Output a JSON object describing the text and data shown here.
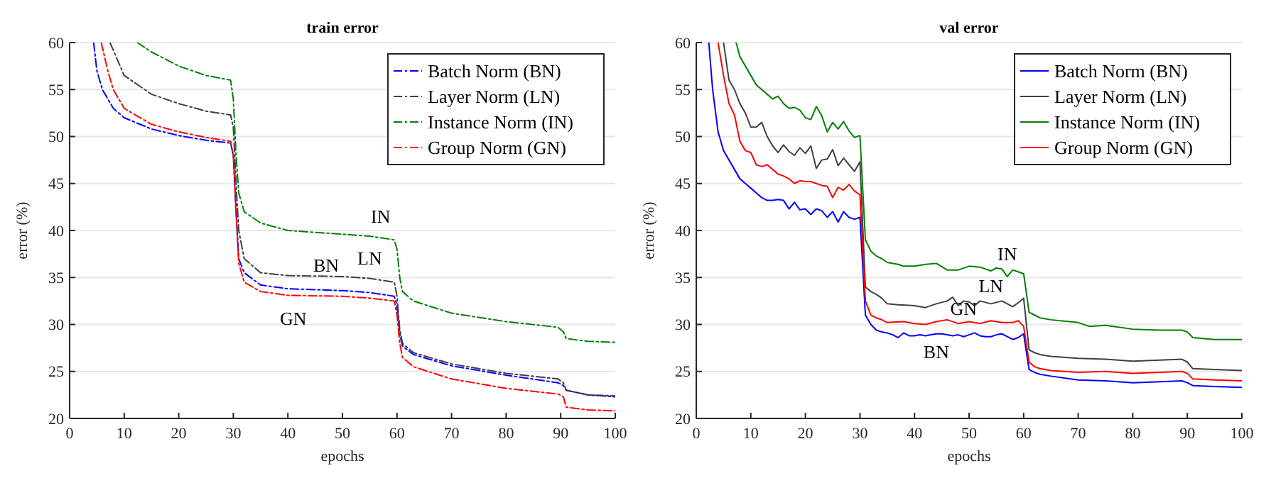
{
  "chart_data": [
    {
      "type": "line",
      "title": "train error",
      "xlabel": "epochs",
      "ylabel": "error (%)",
      "xlim": [
        0,
        100
      ],
      "xticks": [
        0,
        10,
        20,
        30,
        40,
        50,
        60,
        70,
        80,
        90,
        100
      ],
      "ylim": [
        20,
        60
      ],
      "yticks": [
        20,
        25,
        30,
        35,
        40,
        45,
        50,
        55,
        60
      ],
      "grid": "y",
      "legend": "top right",
      "line_style": "dashed",
      "marker": "none",
      "series": [
        {
          "name": "Batch Norm (BN)",
          "color": "#0000ff",
          "x": [
            4.4,
            5,
            6,
            8,
            10,
            15,
            20,
            25,
            29.5,
            30,
            30.5,
            31,
            32,
            35,
            40,
            50,
            55,
            59.5,
            60,
            60.5,
            61,
            63,
            70,
            80,
            89.5,
            90.5,
            91,
            95,
            100
          ],
          "values": [
            60,
            57,
            55,
            53,
            52,
            50.8,
            50.1,
            49.6,
            49.3,
            48,
            42,
            37,
            35.5,
            34.2,
            33.8,
            33.6,
            33.4,
            33,
            32,
            29,
            27.7,
            26.8,
            25.6,
            24.6,
            23.8,
            23.5,
            23,
            22.5,
            22.3
          ]
        },
        {
          "name": "Layer Norm (LN)",
          "color": "#404040",
          "x": [
            7.4,
            10,
            15,
            20,
            25,
            29.5,
            30,
            30.5,
            31,
            32,
            35,
            40,
            50,
            55,
            59.5,
            60,
            60.5,
            61,
            63,
            70,
            80,
            89.5,
            90.5,
            91,
            95,
            100
          ],
          "values": [
            60,
            56.5,
            54.5,
            53.5,
            52.7,
            52.3,
            51,
            45,
            40,
            37,
            35.5,
            35.2,
            35.1,
            34.9,
            34.5,
            33,
            29.5,
            28,
            27,
            25.8,
            24.8,
            24.2,
            23.8,
            23,
            22.5,
            22.4
          ]
        },
        {
          "name": "Instance Norm (IN)",
          "color": "#008000",
          "x": [
            12.4,
            15,
            20,
            25,
            29.5,
            30,
            30.5,
            31,
            32,
            35,
            40,
            50,
            55,
            59.5,
            60,
            60.5,
            61,
            63,
            70,
            80,
            89.5,
            90.5,
            91,
            95,
            100
          ],
          "values": [
            60,
            59,
            57.5,
            56.5,
            56,
            54,
            48,
            44,
            42,
            40.8,
            40,
            39.6,
            39.4,
            39,
            38,
            35,
            33.5,
            32.5,
            31.2,
            30.3,
            29.7,
            29.2,
            28.5,
            28.2,
            28.1
          ]
        },
        {
          "name": "Group Norm (GN)",
          "color": "#ff0000",
          "x": [
            5.8,
            7,
            8,
            10,
            15,
            20,
            25,
            29.5,
            30,
            30.5,
            31,
            32,
            35,
            40,
            50,
            55,
            59.5,
            60,
            60.5,
            61,
            63,
            70,
            80,
            89.5,
            90.5,
            91,
            95,
            100
          ],
          "values": [
            60,
            57,
            55,
            53,
            51.3,
            50.5,
            49.9,
            49.5,
            48,
            42,
            36.5,
            34.5,
            33.5,
            33.1,
            33,
            32.8,
            32.5,
            31,
            28,
            26.5,
            25.5,
            24.2,
            23.2,
            22.6,
            22.3,
            21.2,
            20.9,
            20.8
          ]
        }
      ],
      "annotations": [
        "IN",
        "LN",
        "BN",
        "GN"
      ]
    },
    {
      "type": "line",
      "title": "val error",
      "xlabel": "epochs",
      "ylabel": "error (%)",
      "xlim": [
        0,
        100
      ],
      "xticks": [
        0,
        10,
        20,
        30,
        40,
        50,
        60,
        70,
        80,
        90,
        100
      ],
      "ylim": [
        20,
        60
      ],
      "yticks": [
        20,
        25,
        30,
        35,
        40,
        45,
        50,
        55,
        60
      ],
      "grid": "y",
      "legend": "top right",
      "line_style": "solid",
      "marker": "none",
      "series": [
        {
          "name": "Batch Norm (BN)",
          "color": "#0000ff",
          "x": [
            2.3,
            3,
            4,
            5,
            6,
            7,
            8,
            9,
            10,
            11,
            12,
            13,
            14,
            15,
            16,
            17,
            18,
            19,
            20,
            21,
            22,
            23,
            24,
            25,
            26,
            27,
            28,
            29,
            30,
            31,
            32,
            33,
            34,
            35,
            36,
            37,
            38,
            39,
            40,
            41,
            42,
            43,
            44,
            45,
            46,
            47,
            48,
            49,
            50,
            51,
            52,
            53,
            54,
            55,
            56,
            57,
            58,
            59,
            60,
            61,
            62,
            63,
            65,
            70,
            75,
            80,
            85,
            89,
            90,
            91,
            95,
            100
          ],
          "values": [
            60,
            55,
            50.5,
            48.5,
            47.5,
            46.5,
            45.5,
            45,
            44.5,
            44,
            43.5,
            43.2,
            43.2,
            43.3,
            43.2,
            42.3,
            43,
            42.2,
            42.3,
            41.7,
            42.3,
            42.1,
            41.4,
            42,
            40.9,
            42,
            41.4,
            41.2,
            41.4,
            31,
            30,
            29.4,
            29.2,
            29.1,
            28.9,
            28.6,
            29.1,
            28.8,
            28.8,
            28.9,
            28.8,
            28.9,
            29,
            29,
            28.9,
            28.8,
            28.9,
            28.7,
            28.9,
            29.1,
            28.8,
            28.7,
            28.7,
            28.9,
            29,
            28.7,
            28.4,
            28.6,
            29,
            25.2,
            24.9,
            24.7,
            24.5,
            24.1,
            24,
            23.8,
            23.9,
            24,
            23.8,
            23.5,
            23.4,
            23.3
          ]
        },
        {
          "name": "Layer Norm (LN)",
          "color": "#404040",
          "x": [
            5,
            6,
            7,
            8,
            9,
            10,
            11,
            12,
            13,
            14,
            15,
            16,
            17,
            18,
            19,
            20,
            21,
            22,
            23,
            24,
            25,
            26,
            27,
            28,
            29,
            30,
            31,
            32,
            33,
            34,
            35,
            37,
            40,
            42,
            44,
            46,
            47,
            48,
            49,
            50,
            51,
            52,
            54,
            56,
            58,
            59,
            60,
            61,
            62,
            63,
            65,
            70,
            75,
            80,
            85,
            89,
            90,
            91,
            95,
            100
          ],
          "values": [
            60,
            56,
            55,
            53.5,
            52.5,
            51,
            51,
            51.5,
            50,
            49,
            48.3,
            49.1,
            48.4,
            48,
            48.8,
            48.2,
            49,
            46.6,
            47.5,
            47.6,
            48.6,
            46.9,
            47.7,
            47,
            46.3,
            47.3,
            34,
            33.5,
            33.2,
            32.8,
            32.2,
            32.1,
            32,
            31.8,
            32.2,
            32.5,
            32.9,
            32,
            32.5,
            32.4,
            32,
            32.5,
            32.2,
            32.5,
            31.9,
            32.3,
            32.8,
            27.3,
            27,
            26.8,
            26.6,
            26.4,
            26.3,
            26.1,
            26.2,
            26.3,
            26,
            25.3,
            25.2,
            25.1
          ]
        },
        {
          "name": "Instance Norm (IN)",
          "color": "#008000",
          "x": [
            7.3,
            8,
            9,
            10,
            11,
            12,
            13,
            14,
            15,
            16,
            17,
            18,
            19,
            20,
            21,
            22,
            23,
            24,
            25,
            26,
            27,
            28,
            29,
            30,
            31,
            32,
            33,
            34,
            35,
            37,
            38,
            40,
            42,
            44,
            46,
            48,
            50,
            52,
            54,
            55,
            56,
            57,
            58,
            59,
            60,
            61,
            62,
            63,
            65,
            70,
            72,
            75,
            80,
            85,
            89,
            90,
            91,
            95,
            100
          ],
          "values": [
            60,
            58.5,
            57.5,
            56.5,
            55.5,
            55,
            54.5,
            54,
            54.3,
            53.5,
            53,
            53.1,
            52.8,
            52,
            51.8,
            53.2,
            52.2,
            50.5,
            51.5,
            50.8,
            51.6,
            50.6,
            49.9,
            50.1,
            39,
            37.8,
            37.3,
            37,
            36.6,
            36.4,
            36.2,
            36.2,
            36.4,
            36.5,
            35.8,
            35.8,
            36.2,
            36.1,
            35.7,
            36,
            35.9,
            35.1,
            35.8,
            35.6,
            35.4,
            31.3,
            31,
            30.7,
            30.5,
            30.2,
            29.8,
            29.9,
            29.5,
            29.4,
            29.4,
            29.2,
            28.6,
            28.4,
            28.4
          ]
        },
        {
          "name": "Group Norm (GN)",
          "color": "#ff0000",
          "x": [
            4,
            5,
            6,
            7,
            8,
            9,
            10,
            11,
            12,
            13,
            14,
            15,
            16,
            17,
            18,
            19,
            20,
            21,
            22,
            23,
            24,
            25,
            26,
            27,
            28,
            29,
            30,
            31,
            32,
            33,
            34,
            35,
            38,
            40,
            42,
            44,
            46,
            48,
            50,
            52,
            54,
            56,
            58,
            59,
            60,
            61,
            62,
            63,
            65,
            70,
            75,
            80,
            85,
            89,
            90,
            91,
            95,
            100
          ],
          "values": [
            60,
            56.5,
            53.5,
            52.3,
            49.5,
            48.5,
            48.3,
            47,
            46.8,
            47,
            46.5,
            46,
            45.8,
            45.5,
            45,
            45.3,
            45.2,
            45.2,
            45,
            44.8,
            44.7,
            43.5,
            44.6,
            44.3,
            44.9,
            44.2,
            43.8,
            32.5,
            31,
            30.7,
            30.5,
            30.2,
            30.3,
            30.1,
            30,
            30.3,
            30.5,
            30.1,
            30.3,
            30.1,
            30.4,
            30.2,
            30.2,
            30.4,
            29.8,
            26,
            25.5,
            25.3,
            25.1,
            24.9,
            25,
            24.8,
            24.9,
            25,
            24.8,
            24.2,
            24.1,
            24
          ]
        }
      ],
      "annotations": [
        "IN",
        "LN",
        "GN",
        "BN"
      ]
    }
  ]
}
